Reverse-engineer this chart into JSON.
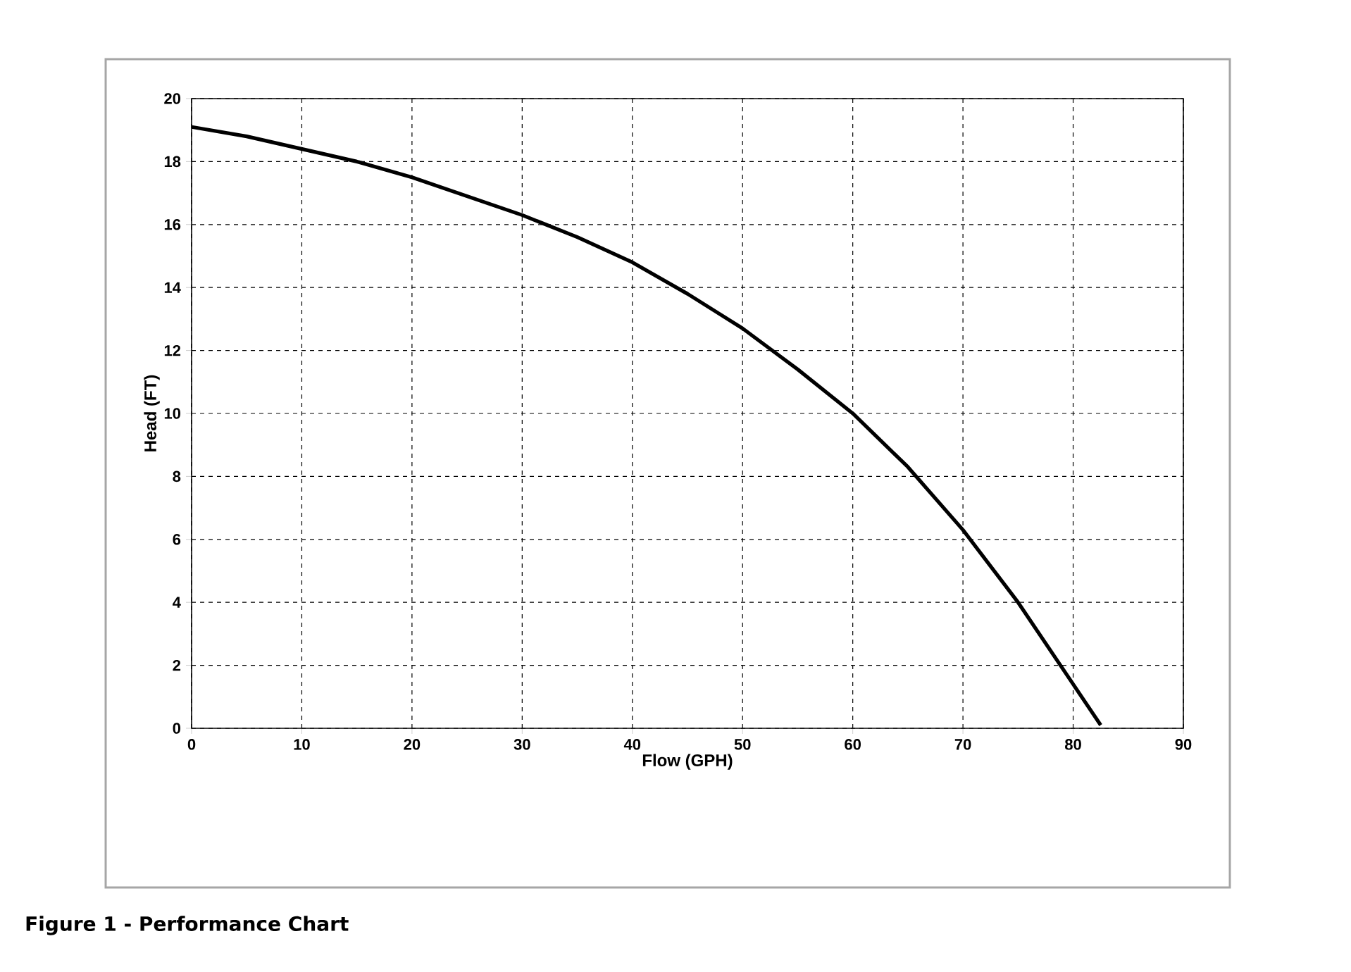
{
  "chart_data": {
    "type": "line",
    "xlabel": "Flow (GPH)",
    "ylabel": "Head (FT)",
    "annotations": [
      "Figure 1 - Performance Chart"
    ],
    "x": [
      0,
      5,
      10,
      15,
      20,
      25,
      30,
      35,
      40,
      45,
      50,
      55,
      60,
      65,
      70,
      75,
      80,
      82.5
    ],
    "series": [
      {
        "color": "#000000",
        "values": [
          19.1,
          18.8,
          18.4,
          18.0,
          17.5,
          16.9,
          16.3,
          15.6,
          14.8,
          13.8,
          12.7,
          11.4,
          10.0,
          8.3,
          6.3,
          4.0,
          1.4,
          0.1
        ]
      }
    ],
    "xlim": [
      0,
      90
    ],
    "xticks": [
      0,
      10,
      20,
      30,
      40,
      50,
      60,
      70,
      80,
      90
    ],
    "ylim": [
      0,
      20
    ],
    "yticks": [
      0,
      2,
      4,
      6,
      8,
      10,
      12,
      14,
      16,
      18,
      20
    ],
    "grid": true,
    "line_style": "solid"
  }
}
